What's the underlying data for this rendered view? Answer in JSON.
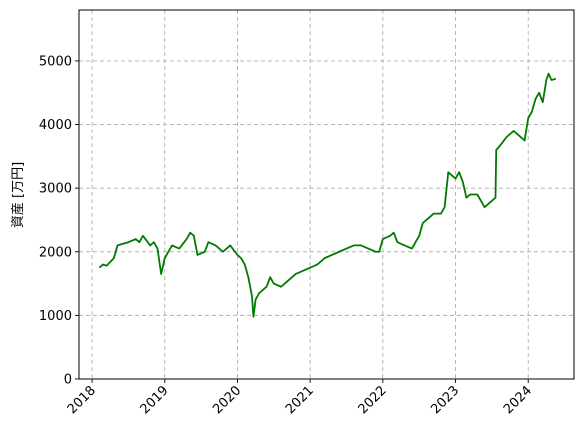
{
  "chart_data": {
    "type": "line",
    "ylabel": "資産 [万円]",
    "xlim": [
      2017.82,
      2024.63
    ],
    "xticks": [
      2018,
      2019,
      2020,
      2021,
      2022,
      2023,
      2024
    ],
    "ylim": [
      0,
      5800
    ],
    "yticks": [
      0,
      1000,
      2000,
      3000,
      4000,
      5000
    ],
    "grid": true,
    "series": [
      {
        "color": "#007a00",
        "x": [
          2018.1,
          2018.15,
          2018.2,
          2018.3,
          2018.35,
          2018.5,
          2018.6,
          2018.65,
          2018.7,
          2018.8,
          2018.85,
          2018.9,
          2018.95,
          2019.0,
          2019.05,
          2019.1,
          2019.2,
          2019.3,
          2019.35,
          2019.4,
          2019.45,
          2019.55,
          2019.6,
          2019.7,
          2019.8,
          2019.9,
          2020.0,
          2020.05,
          2020.1,
          2020.15,
          2020.2,
          2020.22,
          2020.25,
          2020.3,
          2020.4,
          2020.45,
          2020.5,
          2020.6,
          2020.7,
          2020.8,
          2020.9,
          2021.0,
          2021.1,
          2021.2,
          2021.3,
          2021.4,
          2021.5,
          2021.6,
          2021.7,
          2021.8,
          2021.9,
          2021.95,
          2022.0,
          2022.1,
          2022.15,
          2022.2,
          2022.3,
          2022.4,
          2022.5,
          2022.55,
          2022.6,
          2022.7,
          2022.8,
          2022.85,
          2022.9,
          2022.95,
          2023.0,
          2023.05,
          2023.1,
          2023.15,
          2023.2,
          2023.3,
          2023.4,
          2023.5,
          2023.55,
          2023.56,
          2023.6,
          2023.7,
          2023.8,
          2023.85,
          2023.95,
          2024.0,
          2024.05,
          2024.1,
          2024.15,
          2024.2,
          2024.25,
          2024.28,
          2024.32,
          2024.38
        ],
        "values": [
          1750,
          1800,
          1780,
          1900,
          2100,
          2150,
          2200,
          2150,
          2250,
          2100,
          2150,
          2050,
          1650,
          1900,
          2000,
          2100,
          2050,
          2200,
          2300,
          2250,
          1950,
          2000,
          2150,
          2100,
          2000,
          2100,
          1950,
          1900,
          1800,
          1600,
          1300,
          980,
          1250,
          1350,
          1450,
          1600,
          1500,
          1450,
          1550,
          1650,
          1700,
          1750,
          1800,
          1900,
          1950,
          2000,
          2050,
          2100,
          2100,
          2050,
          2000,
          2000,
          2200,
          2250,
          2300,
          2150,
          2100,
          2050,
          2250,
          2450,
          2500,
          2600,
          2600,
          2700,
          3250,
          3200,
          3150,
          3250,
          3100,
          2850,
          2900,
          2900,
          2700,
          2800,
          2850,
          3600,
          3650,
          3800,
          3900,
          3850,
          3750,
          4100,
          4200,
          4400,
          4500,
          4350,
          4700,
          4800,
          4700,
          4720
        ]
      }
    ]
  }
}
